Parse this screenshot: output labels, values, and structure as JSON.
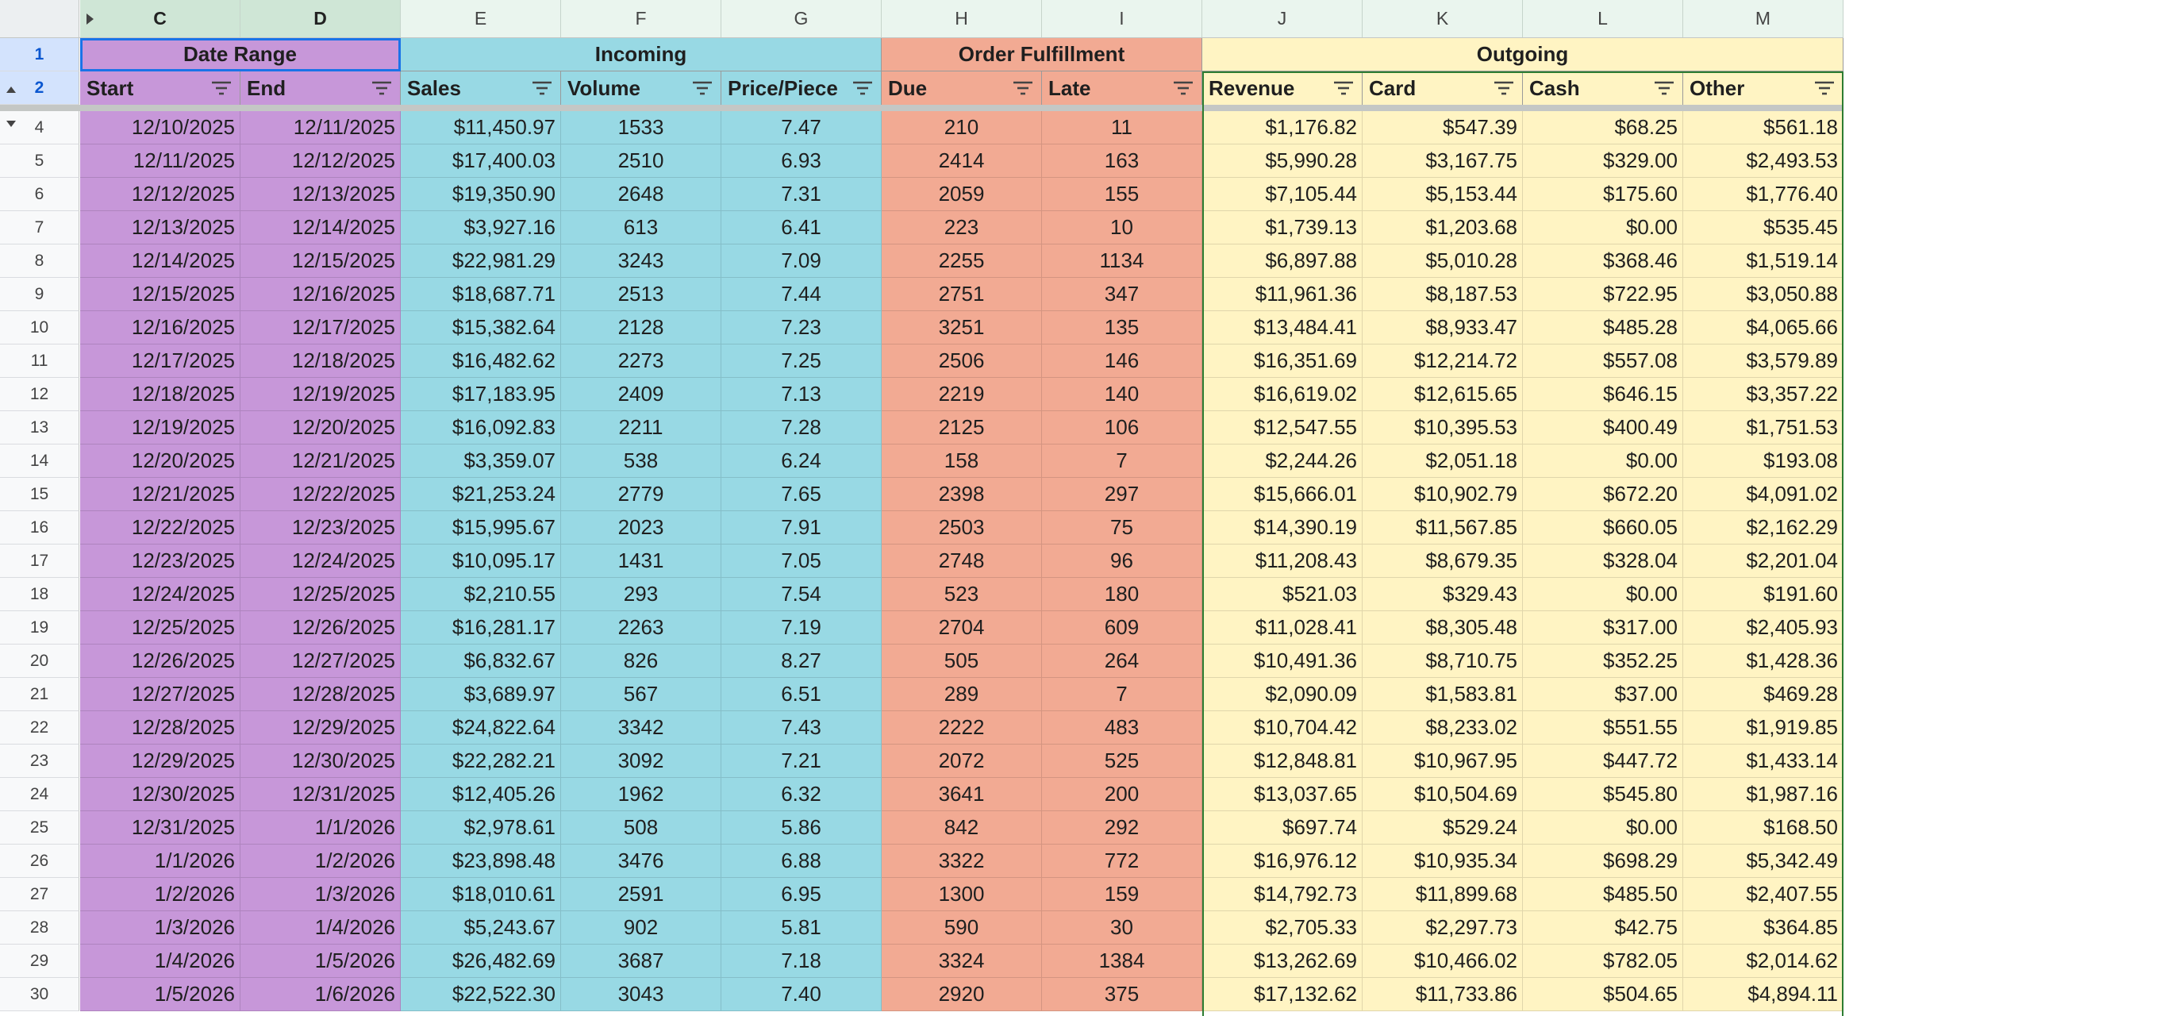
{
  "columns": [
    "C",
    "D",
    "E",
    "F",
    "G",
    "H",
    "I",
    "J",
    "K",
    "L",
    "M"
  ],
  "row_headers": [
    "1",
    "2",
    "4",
    "5",
    "6",
    "7",
    "8",
    "9",
    "10",
    "11",
    "12",
    "13",
    "14",
    "15",
    "16",
    "17",
    "18",
    "19",
    "20",
    "21",
    "22",
    "23",
    "24",
    "25",
    "26",
    "27",
    "28",
    "29",
    "30"
  ],
  "groups": [
    {
      "label": "Date Range",
      "span": [
        0,
        1
      ],
      "color": "#c797d9"
    },
    {
      "label": "Incoming",
      "span": [
        2,
        4
      ],
      "color": "#98d9e4"
    },
    {
      "label": "Order Fulfillment",
      "span": [
        5,
        6
      ],
      "color": "#f2aa93"
    },
    {
      "label": "Outgoing",
      "span": [
        7,
        10
      ],
      "color": "#fff4c3"
    }
  ],
  "headers": [
    "Start",
    "End",
    "Sales",
    "Volume",
    "Price/Piece",
    "Due",
    "Late",
    "Revenue",
    "Card",
    "Cash",
    "Other"
  ],
  "column_colors": [
    "#c797d9",
    "#c797d9",
    "#98d9e4",
    "#98d9e4",
    "#98d9e4",
    "#f2aa93",
    "#f2aa93",
    "#fff4c3",
    "#fff4c3",
    "#fff4c3",
    "#fff4c3"
  ],
  "icons": {
    "filter": "filter-icon",
    "expand": "expand-arrow-icon",
    "collapse": "collapse-arrow-icon"
  },
  "rows": [
    [
      "12/10/2025",
      "12/11/2025",
      "$11,450.97",
      "1533",
      "7.47",
      "210",
      "11",
      "$1,176.82",
      "$547.39",
      "$68.25",
      "$561.18"
    ],
    [
      "12/11/2025",
      "12/12/2025",
      "$17,400.03",
      "2510",
      "6.93",
      "2414",
      "163",
      "$5,990.28",
      "$3,167.75",
      "$329.00",
      "$2,493.53"
    ],
    [
      "12/12/2025",
      "12/13/2025",
      "$19,350.90",
      "2648",
      "7.31",
      "2059",
      "155",
      "$7,105.44",
      "$5,153.44",
      "$175.60",
      "$1,776.40"
    ],
    [
      "12/13/2025",
      "12/14/2025",
      "$3,927.16",
      "613",
      "6.41",
      "223",
      "10",
      "$1,739.13",
      "$1,203.68",
      "$0.00",
      "$535.45"
    ],
    [
      "12/14/2025",
      "12/15/2025",
      "$22,981.29",
      "3243",
      "7.09",
      "2255",
      "1134",
      "$6,897.88",
      "$5,010.28",
      "$368.46",
      "$1,519.14"
    ],
    [
      "12/15/2025",
      "12/16/2025",
      "$18,687.71",
      "2513",
      "7.44",
      "2751",
      "347",
      "$11,961.36",
      "$8,187.53",
      "$722.95",
      "$3,050.88"
    ],
    [
      "12/16/2025",
      "12/17/2025",
      "$15,382.64",
      "2128",
      "7.23",
      "3251",
      "135",
      "$13,484.41",
      "$8,933.47",
      "$485.28",
      "$4,065.66"
    ],
    [
      "12/17/2025",
      "12/18/2025",
      "$16,482.62",
      "2273",
      "7.25",
      "2506",
      "146",
      "$16,351.69",
      "$12,214.72",
      "$557.08",
      "$3,579.89"
    ],
    [
      "12/18/2025",
      "12/19/2025",
      "$17,183.95",
      "2409",
      "7.13",
      "2219",
      "140",
      "$16,619.02",
      "$12,615.65",
      "$646.15",
      "$3,357.22"
    ],
    [
      "12/19/2025",
      "12/20/2025",
      "$16,092.83",
      "2211",
      "7.28",
      "2125",
      "106",
      "$12,547.55",
      "$10,395.53",
      "$400.49",
      "$1,751.53"
    ],
    [
      "12/20/2025",
      "12/21/2025",
      "$3,359.07",
      "538",
      "6.24",
      "158",
      "7",
      "$2,244.26",
      "$2,051.18",
      "$0.00",
      "$193.08"
    ],
    [
      "12/21/2025",
      "12/22/2025",
      "$21,253.24",
      "2779",
      "7.65",
      "2398",
      "297",
      "$15,666.01",
      "$10,902.79",
      "$672.20",
      "$4,091.02"
    ],
    [
      "12/22/2025",
      "12/23/2025",
      "$15,995.67",
      "2023",
      "7.91",
      "2503",
      "75",
      "$14,390.19",
      "$11,567.85",
      "$660.05",
      "$2,162.29"
    ],
    [
      "12/23/2025",
      "12/24/2025",
      "$10,095.17",
      "1431",
      "7.05",
      "2748",
      "96",
      "$11,208.43",
      "$8,679.35",
      "$328.04",
      "$2,201.04"
    ],
    [
      "12/24/2025",
      "12/25/2025",
      "$2,210.55",
      "293",
      "7.54",
      "523",
      "180",
      "$521.03",
      "$329.43",
      "$0.00",
      "$191.60"
    ],
    [
      "12/25/2025",
      "12/26/2025",
      "$16,281.17",
      "2263",
      "7.19",
      "2704",
      "609",
      "$11,028.41",
      "$8,305.48",
      "$317.00",
      "$2,405.93"
    ],
    [
      "12/26/2025",
      "12/27/2025",
      "$6,832.67",
      "826",
      "8.27",
      "505",
      "264",
      "$10,491.36",
      "$8,710.75",
      "$352.25",
      "$1,428.36"
    ],
    [
      "12/27/2025",
      "12/28/2025",
      "$3,689.97",
      "567",
      "6.51",
      "289",
      "7",
      "$2,090.09",
      "$1,583.81",
      "$37.00",
      "$469.28"
    ],
    [
      "12/28/2025",
      "12/29/2025",
      "$24,822.64",
      "3342",
      "7.43",
      "2222",
      "483",
      "$10,704.42",
      "$8,233.02",
      "$551.55",
      "$1,919.85"
    ],
    [
      "12/29/2025",
      "12/30/2025",
      "$22,282.21",
      "3092",
      "7.21",
      "2072",
      "525",
      "$12,848.81",
      "$10,967.95",
      "$447.72",
      "$1,433.14"
    ],
    [
      "12/30/2025",
      "12/31/2025",
      "$12,405.26",
      "1962",
      "6.32",
      "3641",
      "200",
      "$13,037.65",
      "$10,504.69",
      "$545.80",
      "$1,987.16"
    ],
    [
      "12/31/2025",
      "1/1/2026",
      "$2,978.61",
      "508",
      "5.86",
      "842",
      "292",
      "$697.74",
      "$529.24",
      "$0.00",
      "$168.50"
    ],
    [
      "1/1/2026",
      "1/2/2026",
      "$23,898.48",
      "3476",
      "6.88",
      "3322",
      "772",
      "$16,976.12",
      "$10,935.34",
      "$698.29",
      "$5,342.49"
    ],
    [
      "1/2/2026",
      "1/3/2026",
      "$18,010.61",
      "2591",
      "6.95",
      "1300",
      "159",
      "$14,792.73",
      "$11,899.68",
      "$485.50",
      "$2,407.55"
    ],
    [
      "1/3/2026",
      "1/4/2026",
      "$5,243.67",
      "902",
      "5.81",
      "590",
      "30",
      "$2,705.33",
      "$2,297.73",
      "$42.75",
      "$364.85"
    ],
    [
      "1/4/2026",
      "1/5/2026",
      "$26,482.69",
      "3687",
      "7.18",
      "3324",
      "1384",
      "$13,262.69",
      "$10,466.02",
      "$782.05",
      "$2,014.62"
    ],
    [
      "1/5/2026",
      "1/6/2026",
      "$22,522.30",
      "3043",
      "7.40",
      "2920",
      "375",
      "$17,132.62",
      "$11,733.86",
      "$504.65",
      "$4,894.11"
    ]
  ]
}
